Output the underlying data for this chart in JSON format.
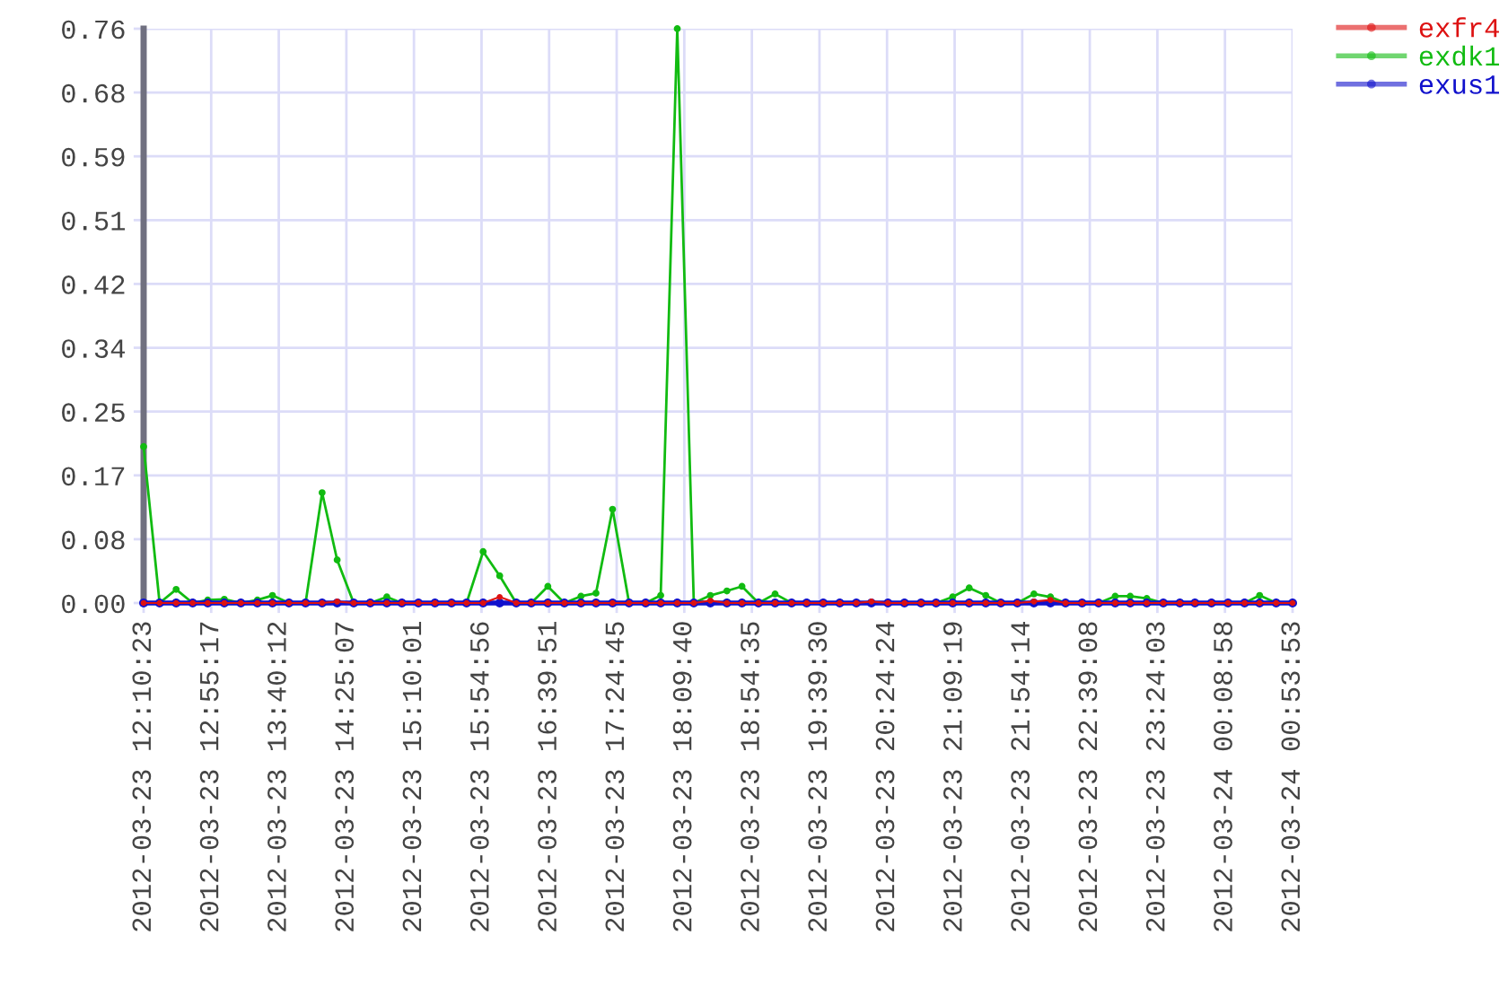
{
  "chart_data": {
    "type": "line",
    "x": [
      "2012-03-23T12:10:23",
      "2012-03-23T12:21",
      "2012-03-23T12:32",
      "2012-03-23T12:43",
      "2012-03-23T12:53",
      "2012-03-23T13:04",
      "2012-03-23T13:15",
      "2012-03-23T13:26",
      "2012-03-23T13:36",
      "2012-03-23T13:47",
      "2012-03-23T13:58",
      "2012-03-23T14:09",
      "2012-03-23T14:19",
      "2012-03-23T14:30",
      "2012-03-23T14:41",
      "2012-03-23T14:52",
      "2012-03-23T15:02",
      "2012-03-23T15:13",
      "2012-03-23T15:24",
      "2012-03-23T15:35",
      "2012-03-23T15:45",
      "2012-03-23T15:56",
      "2012-03-23T16:07",
      "2012-03-23T16:18",
      "2012-03-23T16:28",
      "2012-03-23T16:39",
      "2012-03-23T16:50",
      "2012-03-23T17:01",
      "2012-03-23T17:11",
      "2012-03-23T17:22",
      "2012-03-23T17:33",
      "2012-03-23T17:44",
      "2012-03-23T17:54",
      "2012-03-23T18:05",
      "2012-03-23T18:16",
      "2012-03-23T18:27",
      "2012-03-23T18:38",
      "2012-03-23T18:48",
      "2012-03-23T18:59",
      "2012-03-23T19:10",
      "2012-03-23T19:21",
      "2012-03-23T19:31",
      "2012-03-23T19:42",
      "2012-03-23T19:53",
      "2012-03-23T20:04",
      "2012-03-23T20:14",
      "2012-03-23T20:25",
      "2012-03-23T20:36",
      "2012-03-23T20:47",
      "2012-03-23T20:57",
      "2012-03-23T21:08",
      "2012-03-23T21:19",
      "2012-03-23T21:30",
      "2012-03-23T21:40",
      "2012-03-23T21:51",
      "2012-03-23T22:02",
      "2012-03-23T22:13",
      "2012-03-23T22:23",
      "2012-03-23T22:34",
      "2012-03-23T22:45",
      "2012-03-23T22:56",
      "2012-03-23T23:06",
      "2012-03-23T23:17",
      "2012-03-23T23:28",
      "2012-03-23T23:39",
      "2012-03-23T23:49",
      "2012-03-24T00:00",
      "2012-03-24T00:11",
      "2012-03-24T00:22",
      "2012-03-24T00:32",
      "2012-03-24T00:43",
      "2012-03-24T00:53:53"
    ],
    "series": [
      {
        "name": "exfr4",
        "color": "#dd1111",
        "values": [
          0,
          0,
          0,
          0,
          0,
          0,
          0,
          0,
          0,
          0,
          0,
          0,
          0.002,
          0,
          0,
          0,
          0,
          0,
          0,
          0,
          0,
          0,
          0.008,
          0,
          0,
          0,
          0,
          0,
          0,
          0,
          0,
          0,
          0,
          0,
          0,
          0.003,
          0,
          0,
          0,
          0,
          0,
          0,
          0,
          0,
          0,
          0.002,
          0,
          0,
          0,
          0,
          0,
          0,
          0,
          0,
          0,
          0.002,
          0.004,
          0,
          0,
          0,
          0,
          0,
          0,
          0,
          0,
          0,
          0,
          0,
          0,
          0,
          0,
          0
        ]
      },
      {
        "name": "exdk1",
        "color": "#11bb11",
        "values": [
          0.207,
          0,
          0.018,
          0,
          0.004,
          0.005,
          0,
          0.004,
          0.01,
          0,
          0,
          0.146,
          0.057,
          0,
          0,
          0.008,
          0,
          null,
          null,
          null,
          0,
          0.068,
          0.036,
          0,
          0,
          0.022,
          0,
          0.009,
          0.013,
          0.124,
          0,
          0,
          0.01,
          0.76,
          0,
          0.01,
          0.016,
          0.022,
          0,
          0.012,
          0,
          null,
          null,
          null,
          null,
          null,
          null,
          null,
          null,
          0,
          0.008,
          0.02,
          0.01,
          0,
          0,
          0.012,
          0.008,
          0,
          null,
          0,
          0.009,
          0.009,
          0.006,
          0,
          null,
          null,
          null,
          null,
          0,
          0.01,
          0,
          null
        ]
      },
      {
        "name": "exus1",
        "color": "#1111cc",
        "values": [
          0,
          0,
          0,
          0,
          0,
          0,
          0,
          0,
          0,
          0,
          0,
          0,
          0,
          0,
          0,
          0,
          0,
          0,
          0,
          0,
          0,
          0,
          0,
          0,
          0,
          0,
          0,
          0,
          0,
          0,
          0,
          0,
          0,
          0,
          0,
          0,
          0,
          0,
          0,
          0,
          0,
          0,
          0,
          0,
          0,
          0,
          0,
          0,
          0,
          0,
          0,
          0,
          0,
          0,
          0,
          0,
          0,
          0,
          0,
          0,
          0,
          0,
          0,
          0,
          0,
          0,
          0,
          0,
          0,
          0,
          0,
          0
        ]
      }
    ],
    "xlim": [
      "2012-03-23T12:10:23",
      "2012-03-24T00:53:53"
    ],
    "xticks": [
      {
        "value": "2012-03-23T12:10:23",
        "label": "2012-03-23 12:10:23"
      },
      {
        "value": "2012-03-23T12:55:17",
        "label": "2012-03-23 12:55:17"
      },
      {
        "value": "2012-03-23T13:40:12",
        "label": "2012-03-23 13:40:12"
      },
      {
        "value": "2012-03-23T14:25:07",
        "label": "2012-03-23 14:25:07"
      },
      {
        "value": "2012-03-23T15:10:01",
        "label": "2012-03-23 15:10:01"
      },
      {
        "value": "2012-03-23T15:54:56",
        "label": "2012-03-23 15:54:56"
      },
      {
        "value": "2012-03-23T16:39:51",
        "label": "2012-03-23 16:39:51"
      },
      {
        "value": "2012-03-23T17:24:45",
        "label": "2012-03-23 17:24:45"
      },
      {
        "value": "2012-03-23T18:09:40",
        "label": "2012-03-23 18:09:40"
      },
      {
        "value": "2012-03-23T18:54:35",
        "label": "2012-03-23 18:54:35"
      },
      {
        "value": "2012-03-23T19:39:30",
        "label": "2012-03-23 19:39:30"
      },
      {
        "value": "2012-03-23T20:24:24",
        "label": "2012-03-23 20:24:24"
      },
      {
        "value": "2012-03-23T21:09:19",
        "label": "2012-03-23 21:09:19"
      },
      {
        "value": "2012-03-23T21:54:14",
        "label": "2012-03-23 21:54:14"
      },
      {
        "value": "2012-03-23T22:39:08",
        "label": "2012-03-23 22:39:08"
      },
      {
        "value": "2012-03-23T23:24:03",
        "label": "2012-03-23 23:24:03"
      },
      {
        "value": "2012-03-24T00:08:58",
        "label": "2012-03-24 00:08:58"
      },
      {
        "value": "2012-03-24T00:53:53",
        "label": "2012-03-24 00:53:53"
      }
    ],
    "ylim": [
      0,
      0.76
    ],
    "yticks": [
      {
        "value": 0,
        "label": "0.00"
      },
      {
        "value": 0.0844,
        "label": "0.08"
      },
      {
        "value": 0.1689,
        "label": "0.17"
      },
      {
        "value": 0.2533,
        "label": "0.25"
      },
      {
        "value": 0.3378,
        "label": "0.34"
      },
      {
        "value": 0.4222,
        "label": "0.42"
      },
      {
        "value": 0.5067,
        "label": "0.51"
      },
      {
        "value": 0.5911,
        "label": "0.59"
      },
      {
        "value": 0.6756,
        "label": "0.68"
      },
      {
        "value": 0.76,
        "label": "0.76"
      }
    ],
    "grid": true,
    "legend": "top right",
    "marker": "circle",
    "line_style": "solid"
  }
}
